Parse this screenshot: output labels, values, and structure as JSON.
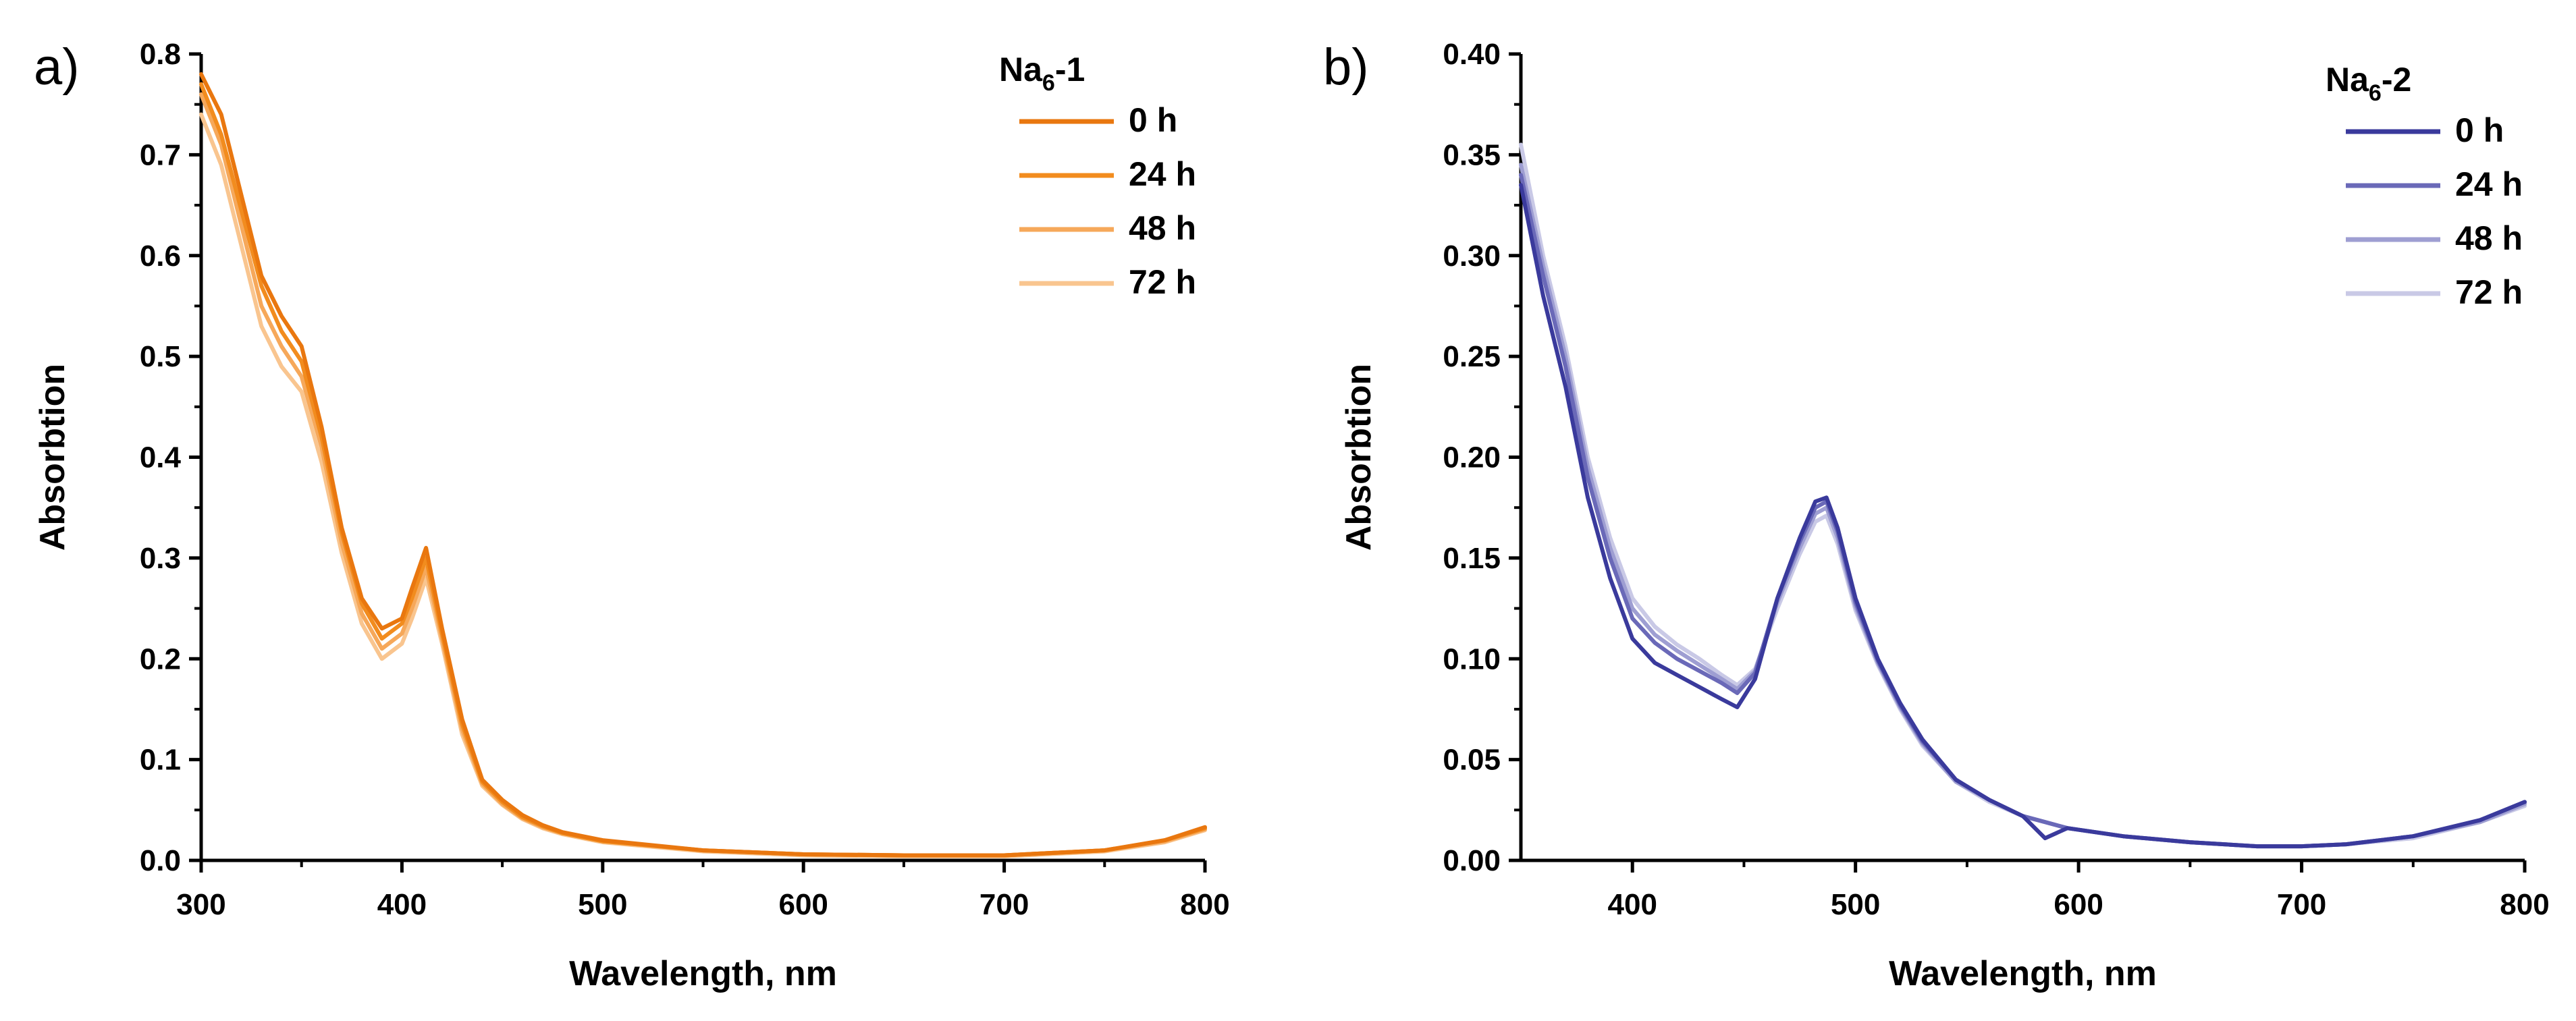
{
  "chart_data": [
    {
      "type": "line",
      "panel_label": "a)",
      "xlabel": "Wavelength, nm",
      "ylabel": "Absorbtion",
      "xlim": [
        300,
        800
      ],
      "ylim": [
        0.0,
        0.8
      ],
      "xticks": [
        300,
        400,
        500,
        600,
        700,
        800
      ],
      "xtick_labels": [
        "300",
        "400",
        "500",
        "600",
        "700",
        "800"
      ],
      "yticks": [
        0.0,
        0.1,
        0.2,
        0.3,
        0.4,
        0.5,
        0.6,
        0.7,
        0.8
      ],
      "ytick_labels": [
        "0.0",
        "0.1",
        "0.2",
        "0.3",
        "0.4",
        "0.5",
        "0.6",
        "0.7",
        "0.8"
      ],
      "legend": {
        "title_main": "Na",
        "title_sub": "6",
        "title_suffix": "-1",
        "placement": "top-right"
      },
      "x": [
        300,
        310,
        320,
        330,
        340,
        350,
        360,
        370,
        380,
        390,
        400,
        405,
        412,
        420,
        430,
        440,
        450,
        460,
        470,
        480,
        500,
        550,
        600,
        650,
        700,
        750,
        780,
        800
      ],
      "series": [
        {
          "name": "0 h",
          "color": "#e9770f",
          "values": [
            0.78,
            0.74,
            0.66,
            0.58,
            0.54,
            0.51,
            0.43,
            0.33,
            0.26,
            0.23,
            0.24,
            0.27,
            0.31,
            0.23,
            0.14,
            0.08,
            0.06,
            0.045,
            0.035,
            0.028,
            0.02,
            0.01,
            0.006,
            0.005,
            0.005,
            0.01,
            0.02,
            0.033
          ]
        },
        {
          "name": "24 h",
          "color": "#f28c1e",
          "values": [
            0.77,
            0.72,
            0.645,
            0.57,
            0.525,
            0.495,
            0.42,
            0.325,
            0.255,
            0.22,
            0.235,
            0.26,
            0.3,
            0.225,
            0.135,
            0.078,
            0.058,
            0.043,
            0.034,
            0.027,
            0.019,
            0.01,
            0.006,
            0.005,
            0.005,
            0.01,
            0.02,
            0.032
          ]
        },
        {
          "name": "48 h",
          "color": "#f6a85a",
          "values": [
            0.76,
            0.71,
            0.63,
            0.55,
            0.51,
            0.48,
            0.41,
            0.315,
            0.245,
            0.21,
            0.225,
            0.25,
            0.29,
            0.22,
            0.13,
            0.076,
            0.056,
            0.042,
            0.033,
            0.027,
            0.019,
            0.01,
            0.006,
            0.005,
            0.005,
            0.01,
            0.019,
            0.031
          ]
        },
        {
          "name": "72 h",
          "color": "#f9c58f",
          "values": [
            0.74,
            0.69,
            0.61,
            0.53,
            0.49,
            0.465,
            0.395,
            0.305,
            0.235,
            0.2,
            0.215,
            0.24,
            0.28,
            0.215,
            0.125,
            0.074,
            0.055,
            0.041,
            0.032,
            0.026,
            0.018,
            0.009,
            0.005,
            0.004,
            0.004,
            0.009,
            0.018,
            0.03
          ]
        }
      ]
    },
    {
      "type": "line",
      "panel_label": "b)",
      "xlabel": "Wavelength, nm",
      "ylabel": "Absorbtion",
      "xlim": [
        350,
        800
      ],
      "ylim": [
        0.0,
        0.4
      ],
      "xticks": [
        400,
        500,
        600,
        700,
        800
      ],
      "xtick_labels": [
        "400",
        "500",
        "600",
        "700",
        "800"
      ],
      "yticks": [
        0.0,
        0.05,
        0.1,
        0.15,
        0.2,
        0.25,
        0.3,
        0.35,
        0.4
      ],
      "ytick_labels": [
        "0.00",
        "0.05",
        "0.10",
        "0.15",
        "0.20",
        "0.25",
        "0.30",
        "0.35",
        "0.40"
      ],
      "legend": {
        "title_main": "Na",
        "title_sub": "6",
        "title_suffix": "-2",
        "placement": "top-right"
      },
      "x": [
        350,
        360,
        370,
        380,
        390,
        400,
        410,
        420,
        430,
        440,
        447,
        455,
        465,
        475,
        482,
        487,
        492,
        500,
        510,
        520,
        530,
        545,
        560,
        575,
        585,
        595,
        620,
        650,
        680,
        700,
        720,
        750,
        780,
        800
      ],
      "series": [
        {
          "name": "0 h",
          "color": "#3a3a9c",
          "values": [
            0.335,
            0.28,
            0.235,
            0.18,
            0.14,
            0.11,
            0.098,
            0.092,
            0.086,
            0.08,
            0.076,
            0.09,
            0.13,
            0.16,
            0.178,
            0.18,
            0.165,
            0.13,
            0.1,
            0.078,
            0.06,
            0.04,
            0.03,
            0.022,
            0.011,
            0.016,
            0.012,
            0.009,
            0.007,
            0.007,
            0.008,
            0.012,
            0.02,
            0.029
          ]
        },
        {
          "name": "24 h",
          "color": "#6a69b8",
          "values": [
            0.34,
            0.29,
            0.245,
            0.19,
            0.15,
            0.12,
            0.108,
            0.1,
            0.094,
            0.088,
            0.083,
            0.093,
            0.13,
            0.158,
            0.175,
            0.178,
            0.163,
            0.128,
            0.099,
            0.077,
            0.059,
            0.04,
            0.03,
            0.022,
            0.019,
            0.016,
            0.012,
            0.009,
            0.007,
            0.007,
            0.008,
            0.012,
            0.02,
            0.029
          ]
        },
        {
          "name": "48 h",
          "color": "#9e9ed2",
          "values": [
            0.345,
            0.295,
            0.25,
            0.195,
            0.155,
            0.125,
            0.112,
            0.104,
            0.097,
            0.09,
            0.085,
            0.094,
            0.128,
            0.155,
            0.172,
            0.175,
            0.16,
            0.126,
            0.098,
            0.076,
            0.058,
            0.039,
            0.03,
            0.022,
            0.019,
            0.016,
            0.012,
            0.009,
            0.007,
            0.007,
            0.008,
            0.012,
            0.019,
            0.028
          ]
        },
        {
          "name": "72 h",
          "color": "#c9c9e6",
          "values": [
            0.355,
            0.3,
            0.255,
            0.2,
            0.16,
            0.13,
            0.116,
            0.107,
            0.1,
            0.092,
            0.087,
            0.095,
            0.125,
            0.152,
            0.168,
            0.171,
            0.157,
            0.124,
            0.097,
            0.075,
            0.057,
            0.039,
            0.029,
            0.022,
            0.019,
            0.016,
            0.012,
            0.009,
            0.007,
            0.007,
            0.008,
            0.011,
            0.019,
            0.027
          ]
        }
      ]
    }
  ]
}
